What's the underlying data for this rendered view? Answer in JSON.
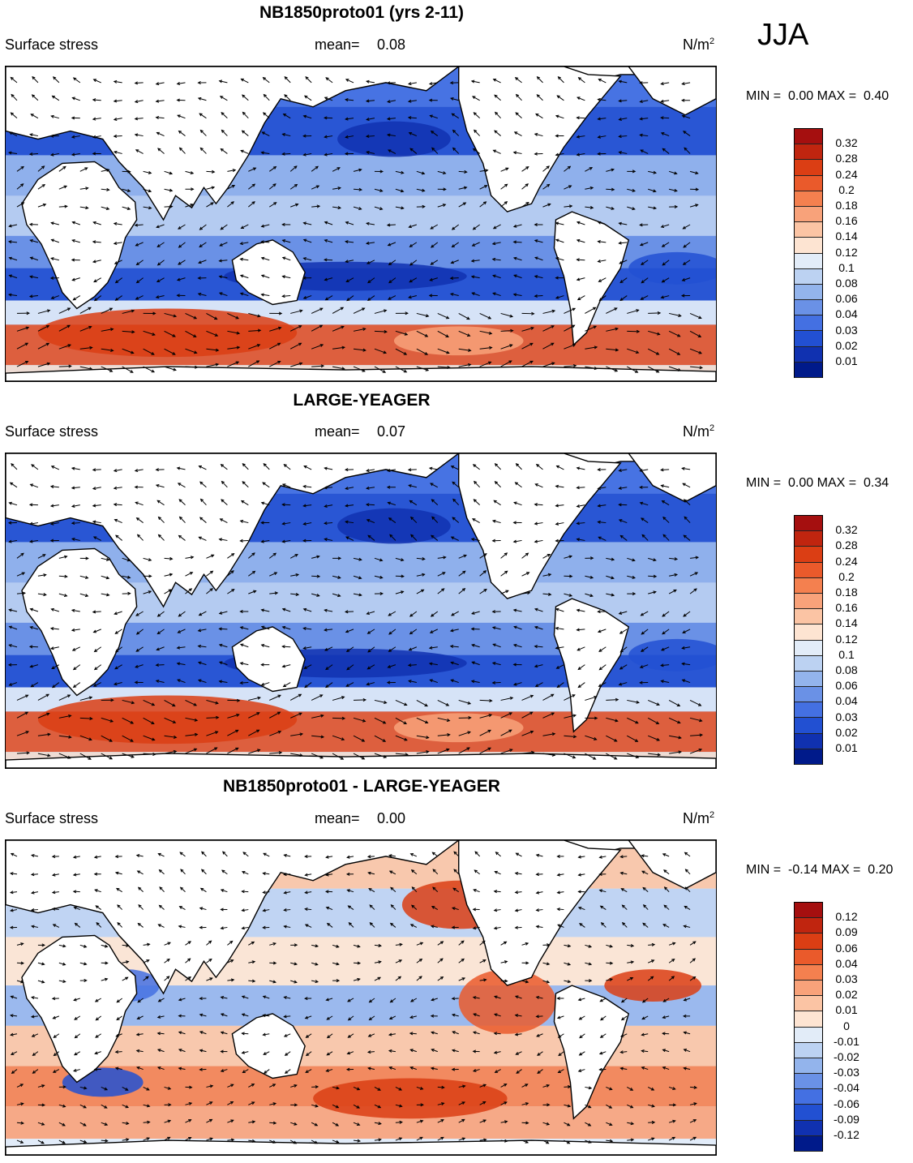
{
  "season": "JJA",
  "panels": [
    {
      "title": "NB1850proto01 (yrs 2-11)",
      "variable": "Surface stress",
      "mean_label": "mean=",
      "mean_value": "0.08",
      "units": "N/m",
      "units_sup": "2",
      "min_label": "MIN =",
      "min_value": "0.00",
      "max_label": "MAX =",
      "max_value": "0.40",
      "levels": [
        "0.32",
        "0.28",
        "0.24",
        "0.2",
        "0.18",
        "0.16",
        "0.14",
        "0.12",
        "0.1",
        "0.08",
        "0.06",
        "0.04",
        "0.03",
        "0.02",
        "0.01"
      ],
      "colors": [
        "#a50f0f",
        "#c0250f",
        "#db3e14",
        "#ea5a2b",
        "#f4804f",
        "#f8a27a",
        "#fbc4a4",
        "#fde4d2",
        "#e2ecf8",
        "#bcd2f2",
        "#93b4ec",
        "#6a91e6",
        "#4470e2",
        "#2250d2",
        "#1031b0",
        "#001a8a"
      ]
    },
    {
      "title": "LARGE-YEAGER",
      "variable": "Surface stress",
      "mean_label": "mean=",
      "mean_value": "0.07",
      "units": "N/m",
      "units_sup": "2",
      "min_label": "MIN =",
      "min_value": "0.00",
      "max_label": "MAX =",
      "max_value": "0.34",
      "levels": [
        "0.32",
        "0.28",
        "0.24",
        "0.2",
        "0.18",
        "0.16",
        "0.14",
        "0.12",
        "0.1",
        "0.08",
        "0.06",
        "0.04",
        "0.03",
        "0.02",
        "0.01"
      ],
      "colors": [
        "#a50f0f",
        "#c0250f",
        "#db3e14",
        "#ea5a2b",
        "#f4804f",
        "#f8a27a",
        "#fbc4a4",
        "#fde4d2",
        "#e2ecf8",
        "#bcd2f2",
        "#93b4ec",
        "#6a91e6",
        "#4470e2",
        "#2250d2",
        "#1031b0",
        "#001a8a"
      ]
    },
    {
      "title": "NB1850proto01 - LARGE-YEAGER",
      "variable": "Surface stress",
      "mean_label": "mean=",
      "mean_value": "0.00",
      "units": "N/m",
      "units_sup": "2",
      "min_label": "MIN =",
      "min_value": "-0.14",
      "max_label": "MAX =",
      "max_value": "0.20",
      "levels": [
        "0.12",
        "0.09",
        "0.06",
        "0.04",
        "0.03",
        "0.02",
        "0.01",
        "0",
        "-0.01",
        "-0.02",
        "-0.03",
        "-0.04",
        "-0.06",
        "-0.09",
        "-0.12"
      ],
      "colors": [
        "#a50f0f",
        "#c0250f",
        "#db3e14",
        "#ea5a2b",
        "#f4804f",
        "#f8a27a",
        "#fbc4a4",
        "#fde4d2",
        "#e2ecf8",
        "#bcd2f2",
        "#93b4ec",
        "#6a91e6",
        "#4470e2",
        "#2250d2",
        "#1031b0",
        "#001a8a"
      ]
    }
  ]
}
